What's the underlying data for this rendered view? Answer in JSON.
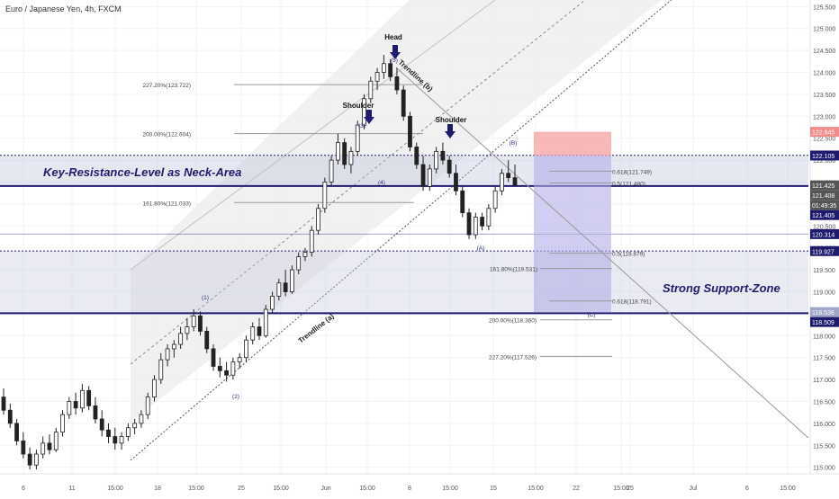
{
  "chart_data": {
    "type": "candlestick",
    "title": "Euro / Japanese Yen, 4h, FXCM",
    "ylim": [
      114.85,
      125.65
    ],
    "y_ticks": [
      "125.500",
      "125.000",
      "124.500",
      "124.000",
      "123.500",
      "123.000",
      "122.500",
      "122.000",
      "121.500",
      "121.000",
      "120.500",
      "120.000",
      "119.500",
      "119.000",
      "118.500",
      "118.000",
      "117.500",
      "117.000",
      "116.500",
      "116.000",
      "115.500",
      "115.000"
    ],
    "x_ticks": [
      "6",
      "11",
      "15:00",
      "18",
      "15:00",
      "25",
      "15:00",
      "Jun",
      "15:00",
      "8",
      "15:00",
      "15",
      "15:00",
      "22",
      "15:00",
      "25",
      "Jul",
      "6",
      "15:00"
    ],
    "grid": true,
    "price_badges": [
      {
        "text": "122.645",
        "color": "#f28a8a"
      },
      {
        "text": "122.105",
        "color": "#1e1b6e"
      },
      {
        "text": "121.425",
        "color": "#555555"
      },
      {
        "text": "121.408",
        "color": "#555555"
      },
      {
        "text": "01:49:35",
        "color": "#555555"
      },
      {
        "text": "121.405",
        "color": "#1e1b6e"
      },
      {
        "text": "120.314",
        "color": "#1e1b6e"
      },
      {
        "text": "119.927",
        "color": "#1e1b6e"
      },
      {
        "text": "118.536",
        "color": "#9fa6c8"
      },
      {
        "text": "118.509",
        "color": "#1e1b6e"
      }
    ],
    "zones": [
      {
        "name": "Key-Resistance-Level as Neck-Area",
        "from": 121.41,
        "to": 122.11
      },
      {
        "name": "Strong Support-Zone",
        "from": 118.51,
        "to": 119.93
      }
    ],
    "annotations": {
      "key_resistance": "Key-Resistance-Level as Neck-Area",
      "support_zone": "Strong Support-Zone",
      "head": "Head",
      "shoulder_left": "Shoulder",
      "shoulder_right": "Shoulder",
      "trendline_a": "Trendline (a)",
      "trendline_b": "Trendline (b)"
    },
    "fib_levels": [
      {
        "text": "227.20%(123.722)",
        "value": 123.722
      },
      {
        "text": "200.00%(122.604)",
        "value": 122.604
      },
      {
        "text": "161.80%(121.033)",
        "value": 121.033
      },
      {
        "text": "0.618(121.749)",
        "value": 121.749
      },
      {
        "text": "0.5(121.480)",
        "value": 121.48
      },
      {
        "text": "0.5(119.879)",
        "value": 119.879
      },
      {
        "text": "161.80%(119.531)",
        "value": 119.531
      },
      {
        "text": "0.618(118.791)",
        "value": 118.791
      },
      {
        "text": "200.00%(118.360)",
        "value": 118.36
      },
      {
        "text": "227.20%(117.526)",
        "value": 117.526
      }
    ],
    "wave_labels": [
      "(1)",
      "(2)",
      "(3)",
      "(4)",
      "(5)",
      "(A)",
      "(B)",
      "(C)"
    ],
    "candles": [
      [
        116.6,
        116.8,
        116.2,
        116.3
      ],
      [
        116.3,
        116.45,
        115.9,
        116.0
      ],
      [
        116.0,
        116.1,
        115.5,
        115.6
      ],
      [
        115.6,
        115.8,
        115.2,
        115.3
      ],
      [
        115.3,
        115.45,
        114.95,
        115.05
      ],
      [
        115.05,
        115.4,
        114.95,
        115.3
      ],
      [
        115.3,
        115.7,
        115.2,
        115.55
      ],
      [
        115.55,
        115.75,
        115.3,
        115.4
      ],
      [
        115.4,
        115.9,
        115.35,
        115.8
      ],
      [
        115.8,
        116.3,
        115.7,
        116.2
      ],
      [
        116.2,
        116.6,
        116.1,
        116.5
      ],
      [
        116.5,
        116.7,
        116.2,
        116.35
      ],
      [
        116.35,
        116.9,
        116.25,
        116.75
      ],
      [
        116.75,
        116.85,
        116.3,
        116.4
      ],
      [
        116.4,
        116.6,
        116.0,
        116.1
      ],
      [
        116.1,
        116.3,
        115.7,
        115.85
      ],
      [
        115.85,
        116.0,
        115.55,
        115.7
      ],
      [
        115.7,
        115.9,
        115.4,
        115.55
      ],
      [
        115.55,
        115.8,
        115.4,
        115.7
      ],
      [
        115.7,
        116.0,
        115.6,
        115.9
      ],
      [
        115.9,
        116.1,
        115.75,
        116.0
      ],
      [
        116.0,
        116.3,
        115.9,
        116.2
      ],
      [
        116.2,
        116.7,
        116.1,
        116.6
      ],
      [
        116.6,
        117.1,
        116.5,
        117.0
      ],
      [
        117.0,
        117.6,
        116.9,
        117.45
      ],
      [
        117.45,
        117.8,
        117.3,
        117.7
      ],
      [
        117.7,
        117.9,
        117.5,
        117.8
      ],
      [
        117.8,
        118.2,
        117.7,
        118.05
      ],
      [
        118.05,
        118.4,
        117.9,
        118.2
      ],
      [
        118.2,
        118.6,
        118.1,
        118.45
      ],
      [
        118.45,
        118.55,
        118.0,
        118.1
      ],
      [
        118.1,
        118.2,
        117.6,
        117.7
      ],
      [
        117.7,
        117.8,
        117.2,
        117.3
      ],
      [
        117.3,
        117.5,
        117.05,
        117.2
      ],
      [
        117.2,
        117.4,
        116.95,
        117.1
      ],
      [
        117.1,
        117.5,
        117.0,
        117.4
      ],
      [
        117.4,
        117.6,
        117.25,
        117.5
      ],
      [
        117.5,
        118.0,
        117.4,
        117.9
      ],
      [
        117.9,
        118.3,
        117.8,
        118.2
      ],
      [
        118.2,
        118.4,
        117.9,
        118.0
      ],
      [
        118.0,
        118.7,
        117.95,
        118.6
      ],
      [
        118.6,
        119.0,
        118.5,
        118.9
      ],
      [
        118.9,
        119.3,
        118.8,
        119.2
      ],
      [
        119.2,
        119.5,
        118.9,
        119.0
      ],
      [
        119.0,
        119.6,
        118.95,
        119.5
      ],
      [
        119.5,
        119.9,
        119.4,
        119.8
      ],
      [
        119.8,
        120.0,
        119.7,
        119.9
      ],
      [
        119.9,
        120.5,
        119.8,
        120.4
      ],
      [
        120.4,
        121.0,
        120.3,
        120.9
      ],
      [
        120.9,
        121.6,
        120.8,
        121.5
      ],
      [
        121.5,
        122.1,
        121.4,
        122.0
      ],
      [
        122.0,
        122.6,
        121.9,
        122.4
      ],
      [
        122.4,
        122.5,
        121.8,
        121.9
      ],
      [
        121.9,
        122.3,
        121.7,
        122.2
      ],
      [
        122.2,
        122.9,
        122.1,
        122.8
      ],
      [
        122.8,
        123.5,
        122.7,
        123.4
      ],
      [
        123.4,
        123.9,
        123.3,
        123.8
      ],
      [
        123.8,
        124.1,
        123.6,
        124.0
      ],
      [
        124.0,
        124.4,
        123.85,
        124.2
      ],
      [
        124.2,
        124.3,
        123.8,
        123.9
      ],
      [
        123.9,
        124.1,
        123.5,
        123.6
      ],
      [
        123.6,
        123.7,
        122.9,
        123.0
      ],
      [
        123.0,
        123.1,
        122.2,
        122.3
      ],
      [
        122.3,
        122.4,
        121.8,
        121.9
      ],
      [
        121.9,
        122.1,
        121.3,
        121.4
      ],
      [
        121.4,
        121.9,
        121.3,
        121.8
      ],
      [
        121.8,
        122.3,
        121.7,
        122.2
      ],
      [
        122.2,
        122.4,
        121.9,
        122.0
      ],
      [
        122.0,
        122.1,
        121.6,
        121.7
      ],
      [
        121.7,
        121.9,
        121.2,
        121.3
      ],
      [
        121.3,
        121.4,
        120.7,
        120.8
      ],
      [
        120.8,
        120.9,
        120.2,
        120.3
      ],
      [
        120.3,
        120.8,
        120.2,
        120.7
      ],
      [
        120.7,
        120.8,
        120.4,
        120.5
      ],
      [
        120.5,
        121.0,
        120.4,
        120.9
      ],
      [
        120.9,
        121.4,
        120.8,
        121.3
      ],
      [
        121.3,
        121.8,
        121.2,
        121.7
      ],
      [
        121.7,
        122.0,
        121.5,
        121.6
      ],
      [
        121.6,
        121.9,
        121.4,
        121.43
      ]
    ]
  }
}
